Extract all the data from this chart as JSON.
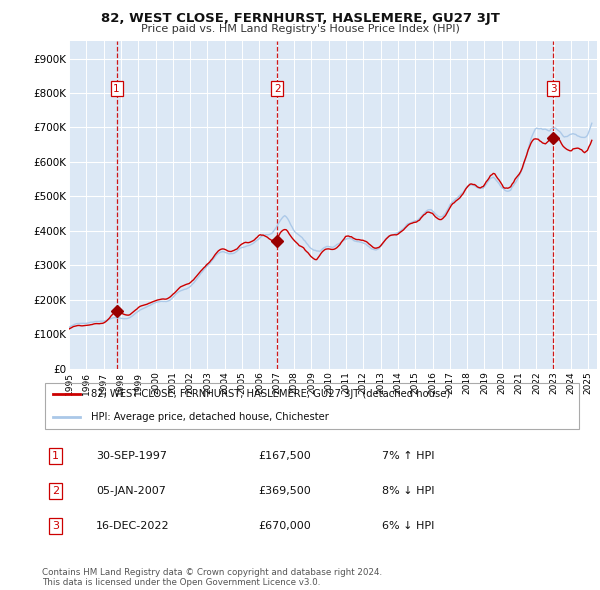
{
  "title": "82, WEST CLOSE, FERNHURST, HASLEMERE, GU27 3JT",
  "subtitle": "Price paid vs. HM Land Registry's House Price Index (HPI)",
  "legend_line1": "82, WEST CLOSE, FERNHURST, HASLEMERE, GU27 3JT (detached house)",
  "legend_line2": "HPI: Average price, detached house, Chichester",
  "transactions": [
    {
      "num": 1,
      "date": "30-SEP-1997",
      "price": 167500,
      "pct": "7%",
      "dir": "↑",
      "x_year": 1997.75
    },
    {
      "num": 2,
      "date": "05-JAN-2007",
      "price": 369500,
      "pct": "8%",
      "dir": "↓",
      "x_year": 2007.02
    },
    {
      "num": 3,
      "date": "16-DEC-2022",
      "price": 670000,
      "pct": "6%",
      "dir": "↓",
      "x_year": 2022.96
    }
  ],
  "hpi_color": "#aac8e8",
  "price_color": "#cc0000",
  "vline_color": "#cc0000",
  "plot_bg": "#dce8f5",
  "grid_color": "#ffffff",
  "fig_bg": "#ffffff",
  "ylim": [
    0,
    950000
  ],
  "xlim_start": 1995.3,
  "xlim_end": 2025.5,
  "yticks": [
    0,
    100000,
    200000,
    300000,
    400000,
    500000,
    600000,
    700000,
    800000,
    900000
  ],
  "ytick_labels": [
    "£0",
    "£100K",
    "£200K",
    "£300K",
    "£400K",
    "£500K",
    "£600K",
    "£700K",
    "£800K",
    "£900K"
  ],
  "xtick_years": [
    1995,
    1996,
    1997,
    1998,
    1999,
    2000,
    2001,
    2002,
    2003,
    2004,
    2005,
    2006,
    2007,
    2008,
    2009,
    2010,
    2011,
    2012,
    2013,
    2014,
    2015,
    2016,
    2017,
    2018,
    2019,
    2020,
    2021,
    2022,
    2023,
    2024,
    2025
  ],
  "footer": "Contains HM Land Registry data © Crown copyright and database right 2024.\nThis data is licensed under the Open Government Licence v3.0."
}
